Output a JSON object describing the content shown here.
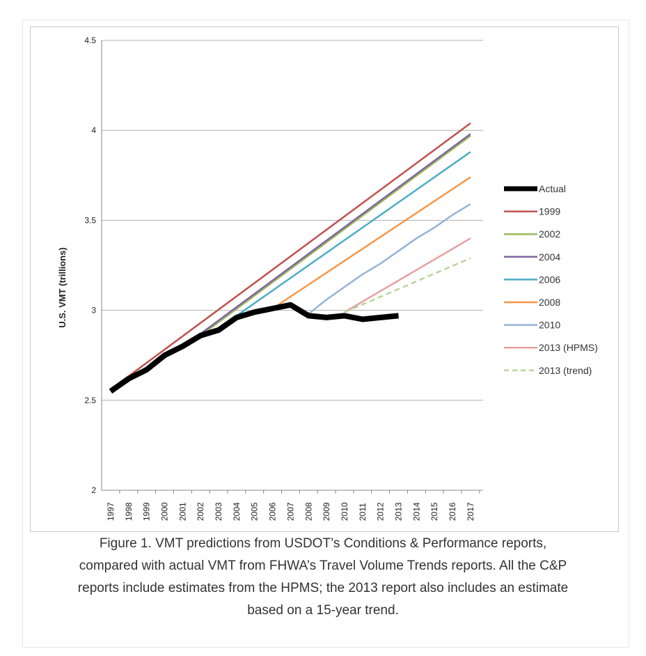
{
  "chart_data": {
    "type": "line",
    "title": "",
    "xlabel": "",
    "ylabel": "U.S. VMT (trillions)",
    "x": [
      "1997",
      "1998",
      "1999",
      "2000",
      "2001",
      "2002",
      "2003",
      "2004",
      "2005",
      "2006",
      "2007",
      "2008",
      "2009",
      "2010",
      "2011",
      "2012",
      "2013",
      "2014",
      "2015",
      "2016",
      "2017"
    ],
    "ylim": [
      2,
      4.5
    ],
    "yticks": [
      "2",
      "2.5",
      "3",
      "3.5",
      "4",
      "4.5"
    ],
    "grid": true,
    "legend_position": "right",
    "series": [
      {
        "name": "Actual",
        "color": "#000000",
        "style": "solid-thick",
        "points": [
          [
            1997,
            2.55
          ],
          [
            1998,
            2.62
          ],
          [
            1999,
            2.67
          ],
          [
            2000,
            2.75
          ],
          [
            2001,
            2.8
          ],
          [
            2002,
            2.86
          ],
          [
            2003,
            2.89
          ],
          [
            2004,
            2.96
          ],
          [
            2005,
            2.99
          ],
          [
            2006,
            3.01
          ],
          [
            2007,
            3.03
          ],
          [
            2008,
            2.97
          ],
          [
            2009,
            2.96
          ],
          [
            2010,
            2.97
          ],
          [
            2011,
            2.95
          ],
          [
            2012,
            2.96
          ],
          [
            2013,
            2.97
          ]
        ]
      },
      {
        "name": "1999",
        "color": "#c0504d",
        "style": "solid",
        "points": [
          [
            1997,
            2.56
          ],
          [
            2017,
            4.04
          ]
        ]
      },
      {
        "name": "2002",
        "color": "#9bbb59",
        "style": "solid",
        "points": [
          [
            2002,
            2.86
          ],
          [
            2017,
            3.97
          ]
        ]
      },
      {
        "name": "2004",
        "color": "#8064a2",
        "style": "solid",
        "points": [
          [
            2002,
            2.87
          ],
          [
            2017,
            3.98
          ]
        ]
      },
      {
        "name": "2006",
        "color": "#4bacc6",
        "style": "solid",
        "points": [
          [
            2004,
            2.97
          ],
          [
            2017,
            3.88
          ]
        ]
      },
      {
        "name": "2008",
        "color": "#f79646",
        "style": "solid",
        "points": [
          [
            2006,
            3.01
          ],
          [
            2017,
            3.74
          ]
        ]
      },
      {
        "name": "2010",
        "color": "#95b3d7",
        "style": "solid",
        "points": [
          [
            2008,
            2.98
          ],
          [
            2009,
            3.06
          ],
          [
            2010,
            3.13
          ],
          [
            2011,
            3.2
          ],
          [
            2012,
            3.26
          ],
          [
            2013,
            3.33
          ],
          [
            2014,
            3.4
          ],
          [
            2015,
            3.46
          ],
          [
            2016,
            3.53
          ],
          [
            2017,
            3.59
          ]
        ]
      },
      {
        "name": "2013 (HPMS)",
        "color": "#e6a0a0",
        "style": "solid",
        "points": [
          [
            2010,
            2.99
          ],
          [
            2017,
            3.4
          ]
        ]
      },
      {
        "name": "2013 (trend)",
        "color": "#b7d59a",
        "style": "dashed",
        "points": [
          [
            2010,
            2.99
          ],
          [
            2017,
            3.29
          ]
        ]
      }
    ]
  },
  "caption": {
    "line1": "Figure 1. VMT predictions from USDOT’s Conditions & Performance reports,",
    "line2": "compared with actual VMT from FHWA’s Travel Volume Trends reports. All the C&P",
    "line3": "reports include estimates from the HPMS; the 2013 report also includes an estimate",
    "line4": "based on a 15-year trend."
  }
}
